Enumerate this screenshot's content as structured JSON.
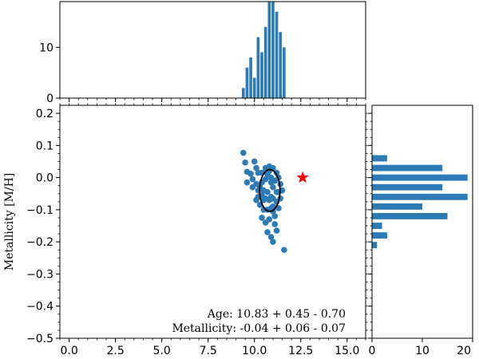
{
  "chart_data": [
    {
      "type": "bar",
      "role": "top-histogram-age",
      "x": [
        9.4,
        9.6,
        9.8,
        10.0,
        10.2,
        10.4,
        10.6,
        10.8,
        11.0,
        11.2,
        11.4,
        11.6
      ],
      "values": [
        2,
        6,
        8,
        4,
        12,
        9,
        14,
        19,
        19,
        17,
        13,
        10
      ],
      "bar_width": 0.2,
      "xlim": [
        -0.5,
        16.0
      ],
      "ylim": [
        0,
        19
      ],
      "yticks": [
        "0",
        "10"
      ],
      "color": "#2c7bb6"
    },
    {
      "type": "bar",
      "role": "right-histogram-metallicity",
      "y": [
        0.06,
        0.03,
        0.0,
        -0.03,
        -0.06,
        -0.09,
        -0.12,
        -0.15,
        -0.18,
        -0.21
      ],
      "values": [
        3,
        14,
        19,
        14,
        19,
        10,
        15,
        2,
        3,
        1
      ],
      "bar_height": 0.022,
      "xlim": [
        0,
        20
      ],
      "ylim": [
        -0.5,
        0.225
      ],
      "xticks": [
        "0",
        "10",
        "20"
      ],
      "color": "#2c7bb6"
    },
    {
      "type": "scatter",
      "role": "main-scatter",
      "ylabel": "Metallicity [M/H]",
      "xlim": [
        -0.5,
        16.0
      ],
      "ylim": [
        -0.5,
        0.225
      ],
      "xticks": [
        "0.0",
        "2.5",
        "5.0",
        "7.5",
        "10.0",
        "12.5",
        "15.0"
      ],
      "yticks": [
        "0.2",
        "0.1",
        "0.0",
        "−0.1",
        "−0.2",
        "−0.3",
        "−0.4",
        "−0.5"
      ],
      "points": [
        [
          9.4,
          0.077
        ],
        [
          9.5,
          0.047
        ],
        [
          9.6,
          0.018
        ],
        [
          9.8,
          0.012
        ],
        [
          9.6,
          -0.015
        ],
        [
          9.9,
          -0.005
        ],
        [
          10.0,
          0.05
        ],
        [
          10.1,
          0.03
        ],
        [
          10.2,
          0.015
        ],
        [
          10.1,
          -0.02
        ],
        [
          10.2,
          -0.04
        ],
        [
          10.4,
          -0.055
        ],
        [
          10.3,
          -0.085
        ],
        [
          10.5,
          -0.1
        ],
        [
          10.4,
          -0.125
        ],
        [
          10.6,
          -0.14
        ],
        [
          10.7,
          -0.17
        ],
        [
          10.9,
          -0.185
        ],
        [
          11.0,
          -0.2
        ],
        [
          11.2,
          -0.165
        ],
        [
          11.1,
          -0.12
        ],
        [
          11.0,
          -0.09
        ],
        [
          10.9,
          -0.06
        ],
        [
          11.0,
          -0.03
        ],
        [
          11.1,
          -0.01
        ],
        [
          11.3,
          0.0
        ],
        [
          11.4,
          -0.02
        ],
        [
          11.3,
          -0.045
        ],
        [
          11.4,
          -0.065
        ],
        [
          11.2,
          -0.075
        ],
        [
          11.6,
          -0.225
        ],
        [
          10.7,
          -0.045
        ],
        [
          10.6,
          -0.065
        ],
        [
          10.8,
          -0.07
        ],
        [
          10.5,
          -0.07
        ],
        [
          10.7,
          0.01
        ],
        [
          10.8,
          0.02
        ],
        [
          10.9,
          0.0
        ],
        [
          11.0,
          0.03
        ],
        [
          10.6,
          0.03
        ],
        [
          10.4,
          -0.015
        ],
        [
          10.3,
          -0.03
        ],
        [
          10.2,
          -0.06
        ],
        [
          11.0,
          -0.105
        ],
        [
          11.2,
          -0.045
        ],
        [
          10.7,
          -0.1
        ],
        [
          10.9,
          -0.095
        ],
        [
          10.4,
          0.015
        ],
        [
          9.9,
          -0.03
        ],
        [
          10.1,
          -0.07
        ],
        [
          11.5,
          -0.04
        ],
        [
          11.2,
          0.015
        ],
        [
          10.8,
          -0.13
        ],
        [
          11.1,
          -0.145
        ],
        [
          10.5,
          -0.04
        ],
        [
          10.9,
          -0.015
        ],
        [
          10.6,
          -0.005
        ],
        [
          11.3,
          -0.095
        ],
        [
          11.0,
          -0.065
        ],
        [
          10.8,
          0.035
        ]
      ],
      "point_color": "#2c7bb6",
      "ellipse": {
        "cx": 10.83,
        "cy": -0.04,
        "rx": 0.55,
        "ry": 0.065,
        "color": "#000000"
      },
      "reference_star": {
        "x": 12.6,
        "y": 0.0,
        "color": "#ff0000"
      },
      "annotations": {
        "age": "Age: 10.83 + 0.45 - 0.70",
        "metallicity": "Metallicity: -0.04 + 0.06 - 0.07"
      }
    }
  ]
}
